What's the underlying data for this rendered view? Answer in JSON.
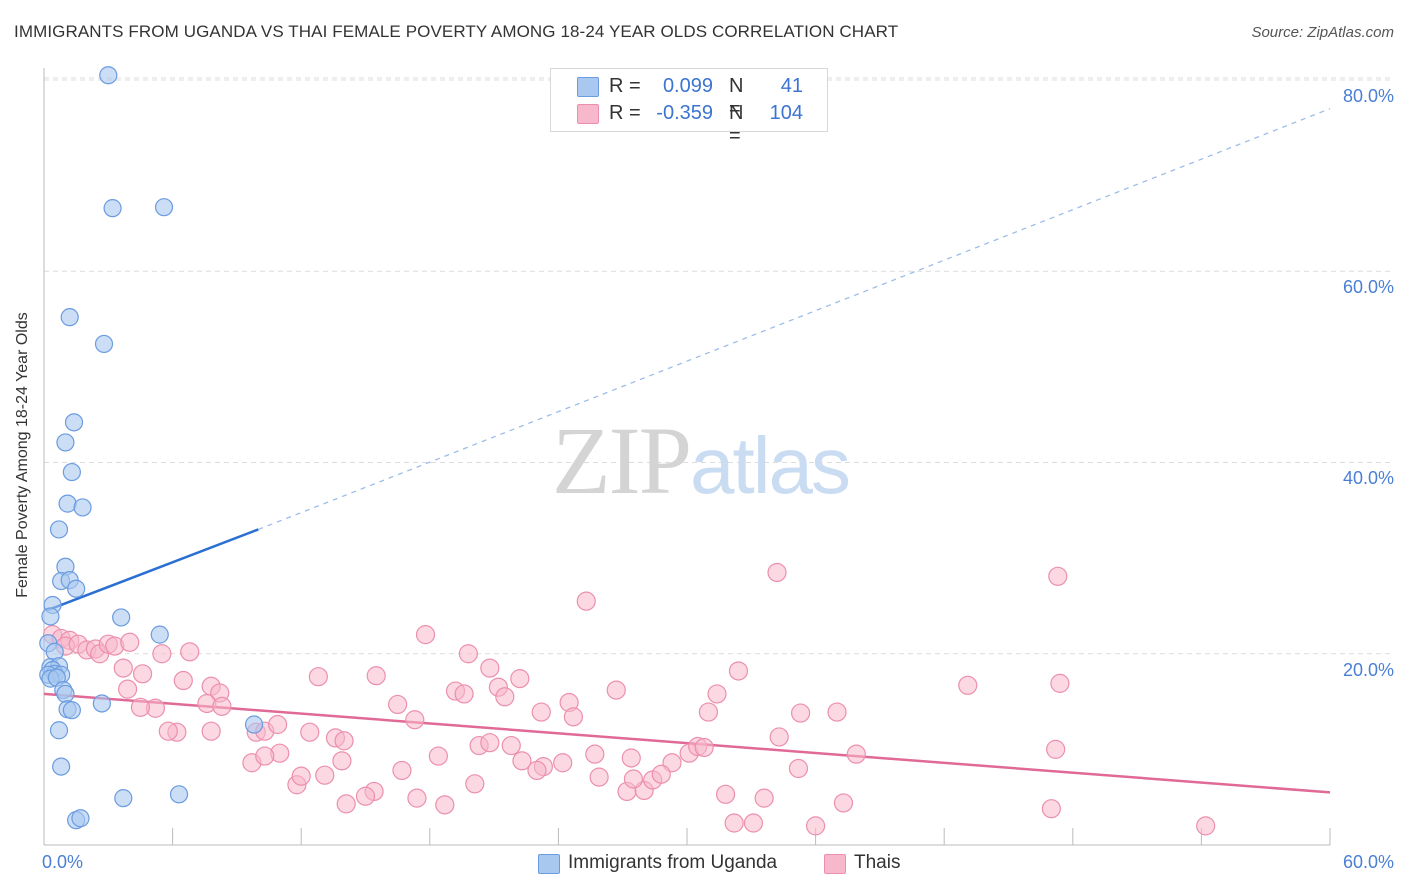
{
  "header": {
    "title": "IMMIGRANTS FROM UGANDA VS THAI FEMALE POVERTY AMONG 18-24 YEAR OLDS CORRELATION CHART",
    "source": "Source: ZipAtlas.com"
  },
  "watermark": {
    "zip": "ZIP",
    "atlas": "atlas"
  },
  "legend": {
    "rows": [
      {
        "r_label": "R =",
        "r_value": "0.099",
        "n_label": "N =",
        "n_value": "41"
      },
      {
        "r_label": "R =",
        "r_value": "-0.359",
        "n_label": "N =",
        "n_value": "104"
      }
    ]
  },
  "bottom_legend": {
    "uganda": "Immigrants from Uganda",
    "thais": "Thais"
  },
  "axis_labels": {
    "ylabel": "Female Poverty Among 18-24 Year Olds",
    "yticks": [
      "80.0%",
      "60.0%",
      "40.0%",
      "20.0%"
    ],
    "x_left": "0.0%",
    "x_right": "60.0%"
  },
  "colors": {
    "uganda_fill": "#a9c8f0",
    "uganda_stroke": "#6b9be0",
    "uganda_line": "#2a6fd1",
    "thai_fill": "#f7b8cb",
    "thai_stroke": "#ec8fae",
    "thai_line": "#e06a95",
    "tick_text": "#4a7fd4",
    "grid": "#dcdcdc"
  },
  "chart_data": {
    "type": "scatter",
    "title": "IMMIGRANTS FROM UGANDA VS THAI FEMALE POVERTY AMONG 18-24 YEAR OLDS CORRELATION CHART",
    "xlabel": "",
    "ylabel": "Female Poverty Among 18-24 Year Olds",
    "xlim": [
      0,
      60
    ],
    "ylim": [
      0,
      80
    ],
    "yticks": [
      20,
      40,
      60,
      80
    ],
    "grid": true,
    "series": [
      {
        "name": "Immigrants from Uganda",
        "R": 0.099,
        "N": 41,
        "trend": {
          "x0": 0.1,
          "y0": 24.5,
          "x1": 10.0,
          "y1": 33.0,
          "x_dash_end": 60.0,
          "y_dash_end": 77.0
        },
        "points": [
          [
            3.0,
            80.5
          ],
          [
            3.2,
            66.6
          ],
          [
            5.6,
            66.7
          ],
          [
            1.2,
            55.2
          ],
          [
            2.8,
            52.4
          ],
          [
            1.4,
            44.2
          ],
          [
            1.0,
            42.1
          ],
          [
            1.3,
            39.0
          ],
          [
            1.1,
            35.7
          ],
          [
            1.8,
            35.3
          ],
          [
            0.7,
            33.0
          ],
          [
            1.0,
            29.1
          ],
          [
            0.8,
            27.6
          ],
          [
            1.2,
            27.7
          ],
          [
            1.5,
            26.8
          ],
          [
            0.4,
            25.1
          ],
          [
            0.3,
            23.9
          ],
          [
            3.6,
            23.8
          ],
          [
            5.4,
            22.0
          ],
          [
            0.2,
            21.1
          ],
          [
            0.5,
            20.2
          ],
          [
            0.3,
            18.6
          ],
          [
            0.7,
            18.7
          ],
          [
            0.4,
            18.3
          ],
          [
            0.5,
            17.9
          ],
          [
            0.2,
            17.8
          ],
          [
            0.8,
            17.8
          ],
          [
            0.3,
            17.4
          ],
          [
            0.6,
            17.5
          ],
          [
            0.9,
            16.2
          ],
          [
            1.0,
            15.8
          ],
          [
            1.1,
            14.2
          ],
          [
            1.3,
            14.1
          ],
          [
            2.7,
            14.8
          ],
          [
            9.8,
            12.6
          ],
          [
            0.7,
            12.0
          ],
          [
            0.8,
            8.2
          ],
          [
            3.7,
            4.9
          ],
          [
            6.3,
            5.3
          ],
          [
            1.5,
            2.6
          ],
          [
            1.7,
            2.8
          ]
        ]
      },
      {
        "name": "Thais",
        "R": -0.359,
        "N": 104,
        "trend": {
          "x0": 0.0,
          "y0": 15.8,
          "x1": 60.0,
          "y1": 5.5
        },
        "points": [
          [
            0.4,
            22.0
          ],
          [
            0.8,
            21.6
          ],
          [
            1.2,
            21.4
          ],
          [
            1.0,
            20.8
          ],
          [
            1.6,
            21.0
          ],
          [
            2.0,
            20.4
          ],
          [
            2.4,
            20.5
          ],
          [
            2.6,
            20.0
          ],
          [
            3.0,
            21.0
          ],
          [
            3.3,
            20.8
          ],
          [
            4.0,
            21.2
          ],
          [
            3.7,
            18.5
          ],
          [
            4.6,
            17.9
          ],
          [
            5.5,
            20.0
          ],
          [
            6.8,
            20.2
          ],
          [
            3.9,
            16.3
          ],
          [
            5.2,
            14.3
          ],
          [
            4.5,
            14.4
          ],
          [
            6.5,
            17.2
          ],
          [
            7.8,
            16.6
          ],
          [
            8.2,
            15.9
          ],
          [
            6.2,
            11.8
          ],
          [
            5.8,
            11.9
          ],
          [
            7.6,
            14.8
          ],
          [
            8.3,
            14.5
          ],
          [
            7.8,
            11.9
          ],
          [
            9.9,
            11.8
          ],
          [
            10.3,
            11.9
          ],
          [
            10.9,
            12.6
          ],
          [
            12.8,
            17.6
          ],
          [
            12.4,
            11.8
          ],
          [
            13.6,
            11.2
          ],
          [
            14.0,
            10.9
          ],
          [
            15.5,
            17.7
          ],
          [
            16.5,
            14.7
          ],
          [
            17.3,
            13.1
          ],
          [
            17.8,
            22.0
          ],
          [
            19.2,
            16.1
          ],
          [
            19.6,
            15.8
          ],
          [
            19.8,
            20.0
          ],
          [
            21.2,
            16.5
          ],
          [
            21.5,
            15.5
          ],
          [
            20.8,
            18.5
          ],
          [
            22.2,
            17.4
          ],
          [
            23.2,
            13.9
          ],
          [
            24.5,
            14.9
          ],
          [
            24.7,
            13.4
          ],
          [
            25.3,
            25.5
          ],
          [
            26.7,
            16.2
          ],
          [
            25.7,
            9.5
          ],
          [
            24.2,
            8.6
          ],
          [
            23.3,
            8.2
          ],
          [
            20.3,
            10.4
          ],
          [
            20.8,
            10.7
          ],
          [
            22.3,
            8.8
          ],
          [
            18.4,
            9.3
          ],
          [
            16.7,
            7.8
          ],
          [
            15.4,
            5.6
          ],
          [
            14.1,
            4.3
          ],
          [
            15.0,
            5.1
          ],
          [
            13.1,
            7.3
          ],
          [
            13.9,
            8.8
          ],
          [
            11.8,
            6.3
          ],
          [
            12.0,
            7.2
          ],
          [
            11.0,
            9.6
          ],
          [
            9.7,
            8.6
          ],
          [
            10.3,
            9.3
          ],
          [
            17.4,
            4.9
          ],
          [
            18.7,
            4.2
          ],
          [
            20.1,
            6.4
          ],
          [
            21.8,
            10.4
          ],
          [
            23.0,
            7.8
          ],
          [
            25.9,
            7.1
          ],
          [
            27.4,
            9.1
          ],
          [
            27.2,
            5.6
          ],
          [
            28.0,
            5.7
          ],
          [
            28.4,
            6.8
          ],
          [
            29.3,
            8.6
          ],
          [
            28.8,
            7.4
          ],
          [
            30.1,
            9.6
          ],
          [
            30.5,
            10.3
          ],
          [
            30.8,
            10.2
          ],
          [
            31.0,
            13.9
          ],
          [
            31.4,
            15.8
          ],
          [
            32.4,
            18.2
          ],
          [
            34.2,
            28.5
          ],
          [
            34.3,
            11.3
          ],
          [
            35.3,
            13.8
          ],
          [
            35.2,
            8.0
          ],
          [
            37.0,
            13.9
          ],
          [
            37.9,
            9.5
          ],
          [
            31.8,
            5.3
          ],
          [
            32.2,
            2.3
          ],
          [
            33.1,
            2.3
          ],
          [
            33.6,
            4.9
          ],
          [
            36.0,
            2.0
          ],
          [
            37.3,
            4.4
          ],
          [
            43.1,
            16.7
          ],
          [
            47.2,
            10.0
          ],
          [
            47.3,
            28.1
          ],
          [
            47.4,
            16.9
          ],
          [
            47.0,
            3.8
          ],
          [
            54.2,
            2.0
          ],
          [
            27.5,
            6.9
          ]
        ]
      }
    ]
  }
}
